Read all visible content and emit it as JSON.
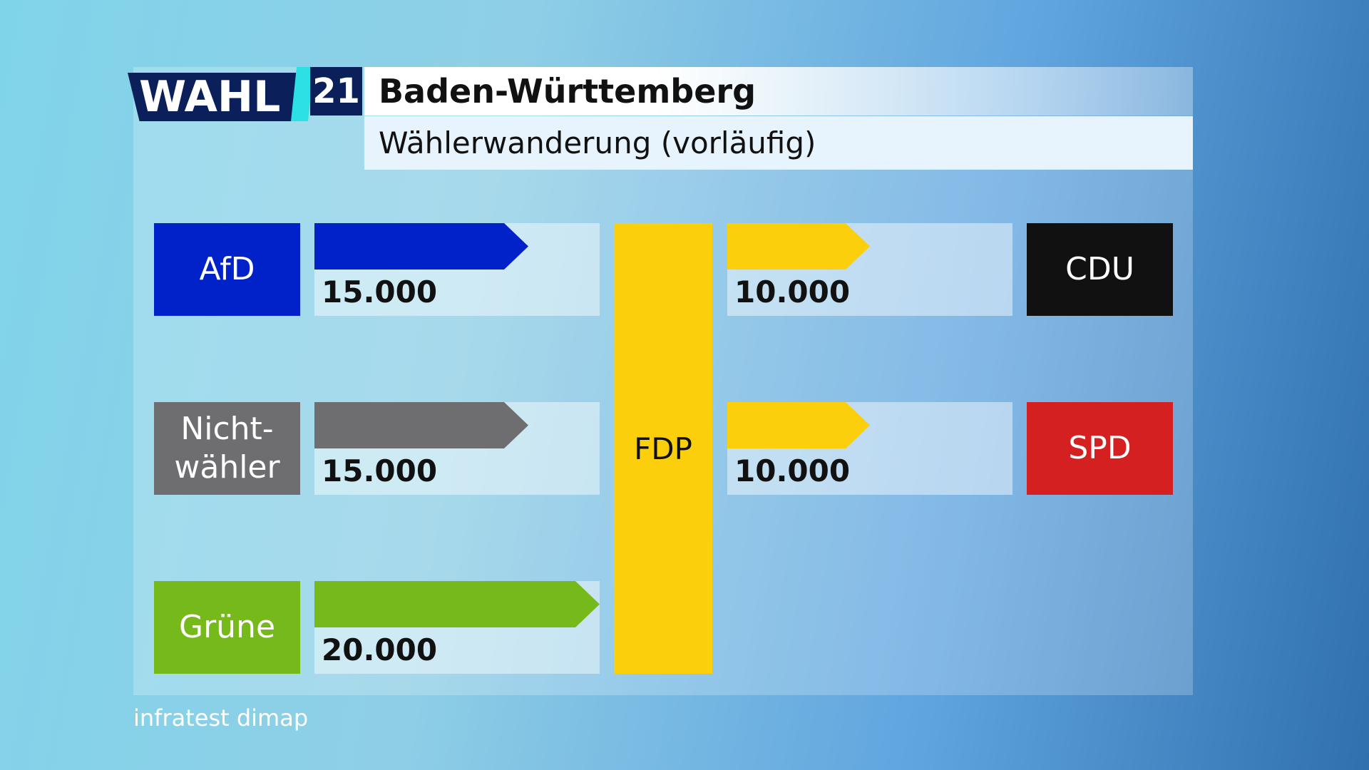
{
  "chart_data": {
    "type": "flow",
    "logo": {
      "word": "WAHL",
      "year": "21"
    },
    "title": "Baden-Württemberg",
    "subtitle": "Wählerwanderung (vorläufig)",
    "center": {
      "name": "FDP",
      "color": "#fccf0d"
    },
    "inflows": {
      "categories": [
        "AfD",
        "Nicht-\nwähler",
        "Grüne"
      ],
      "colors": [
        "#0022c8",
        "#6e6e70",
        "#76b91b"
      ],
      "values": [
        15000,
        15000,
        20000
      ],
      "value_labels": [
        "15.000",
        "15.000",
        "20.000"
      ]
    },
    "outflows": {
      "categories": [
        "CDU",
        "SPD"
      ],
      "colors": [
        "#111111",
        "#d42020"
      ],
      "values": [
        10000,
        10000
      ],
      "value_labels": [
        "10.000",
        "10.000"
      ]
    },
    "source": "infratest dimap"
  }
}
